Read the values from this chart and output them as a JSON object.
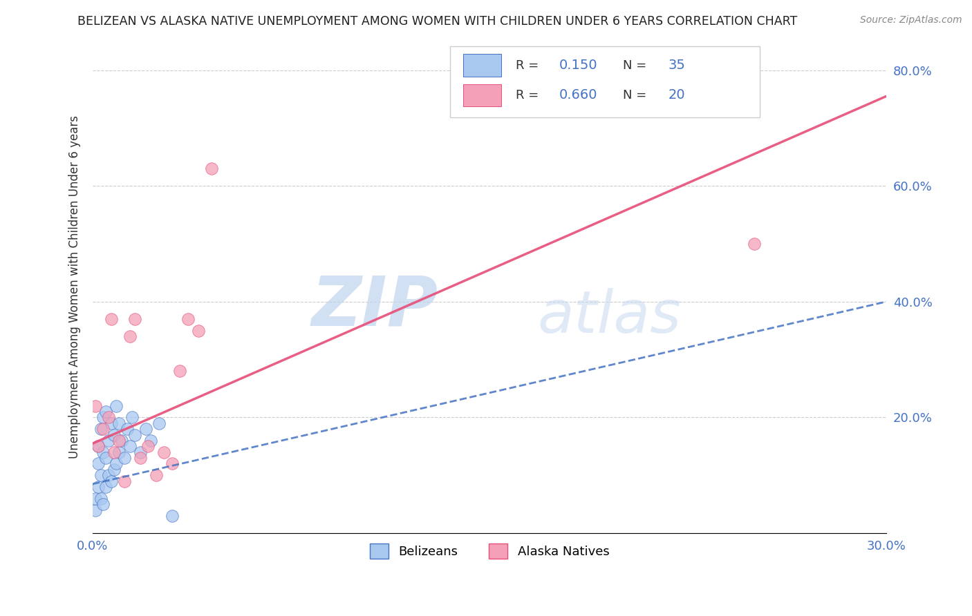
{
  "title": "BELIZEAN VS ALASKA NATIVE UNEMPLOYMENT AMONG WOMEN WITH CHILDREN UNDER 6 YEARS CORRELATION CHART",
  "source": "Source: ZipAtlas.com",
  "ylabel": "Unemployment Among Women with Children Under 6 years",
  "legend_label1": "Belizeans",
  "legend_label2": "Alaska Natives",
  "r1": 0.15,
  "n1": 35,
  "r2": 0.66,
  "n2": 20,
  "xlim": [
    0.0,
    0.3
  ],
  "ylim": [
    0.0,
    0.85
  ],
  "xticks": [
    0.0,
    0.05,
    0.1,
    0.15,
    0.2,
    0.25,
    0.3
  ],
  "xtick_labels": [
    "0.0%",
    "",
    "",
    "",
    "",
    "",
    "30.0%"
  ],
  "yticks_right": [
    0.0,
    0.2,
    0.4,
    0.6,
    0.8
  ],
  "ytick_right_labels": [
    "",
    "20.0%",
    "40.0%",
    "60.0%",
    "80.0%"
  ],
  "color_belizean": "#A8C8F0",
  "color_alaska": "#F4A0B8",
  "color_line_belizean": "#4472C4",
  "color_line_alaska": "#E8507A",
  "watermark_zip": "ZIP",
  "watermark_atlas": "atlas",
  "belizean_line": [
    0.0,
    0.085,
    0.3,
    0.4
  ],
  "alaska_line": [
    0.0,
    0.155,
    0.3,
    0.755
  ],
  "belizean_x": [
    0.001,
    0.001,
    0.002,
    0.002,
    0.002,
    0.003,
    0.003,
    0.003,
    0.004,
    0.004,
    0.004,
    0.005,
    0.005,
    0.005,
    0.006,
    0.006,
    0.007,
    0.007,
    0.008,
    0.008,
    0.009,
    0.009,
    0.01,
    0.01,
    0.011,
    0.012,
    0.013,
    0.014,
    0.015,
    0.016,
    0.018,
    0.02,
    0.022,
    0.025,
    0.03
  ],
  "belizean_y": [
    0.04,
    0.06,
    0.08,
    0.12,
    0.15,
    0.06,
    0.1,
    0.18,
    0.05,
    0.14,
    0.2,
    0.08,
    0.13,
    0.21,
    0.1,
    0.16,
    0.09,
    0.19,
    0.11,
    0.17,
    0.12,
    0.22,
    0.14,
    0.19,
    0.16,
    0.13,
    0.18,
    0.15,
    0.2,
    0.17,
    0.14,
    0.18,
    0.16,
    0.19,
    0.03
  ],
  "alaska_x": [
    0.001,
    0.002,
    0.004,
    0.006,
    0.007,
    0.008,
    0.01,
    0.012,
    0.014,
    0.016,
    0.018,
    0.021,
    0.024,
    0.027,
    0.03,
    0.033,
    0.036,
    0.04,
    0.045,
    0.25
  ],
  "alaska_y": [
    0.22,
    0.15,
    0.18,
    0.2,
    0.37,
    0.14,
    0.16,
    0.09,
    0.34,
    0.37,
    0.13,
    0.15,
    0.1,
    0.14,
    0.12,
    0.28,
    0.37,
    0.35,
    0.63,
    0.5
  ]
}
